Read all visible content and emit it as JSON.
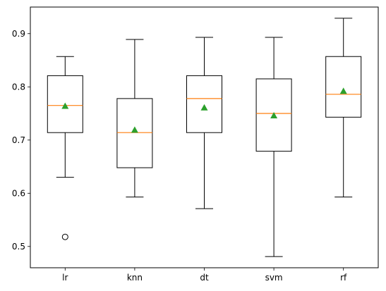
{
  "chart_data": {
    "type": "box",
    "title": "",
    "xlabel": "",
    "ylabel": "",
    "categories": [
      "lr",
      "knn",
      "dt",
      "svm",
      "rf"
    ],
    "ylim": [
      0.46,
      0.95
    ],
    "yticks": [
      0.5,
      0.6,
      0.7,
      0.8,
      0.9
    ],
    "ytick_labels": [
      "0.5",
      "0.6",
      "0.7",
      "0.8",
      "0.9"
    ],
    "grid": false,
    "boxes": [
      {
        "name": "lr",
        "whisker_low": 0.63,
        "q1": 0.714,
        "median": 0.765,
        "q3": 0.821,
        "whisker_high": 0.857,
        "mean": 0.764,
        "outliers": [
          0.518
        ]
      },
      {
        "name": "knn",
        "whisker_low": 0.593,
        "q1": 0.648,
        "median": 0.714,
        "q3": 0.778,
        "whisker_high": 0.889,
        "mean": 0.719,
        "outliers": []
      },
      {
        "name": "dt",
        "whisker_low": 0.571,
        "q1": 0.714,
        "median": 0.778,
        "q3": 0.821,
        "whisker_high": 0.893,
        "mean": 0.761,
        "outliers": []
      },
      {
        "name": "svm",
        "whisker_low": 0.481,
        "q1": 0.679,
        "median": 0.75,
        "q3": 0.815,
        "whisker_high": 0.893,
        "mean": 0.746,
        "outliers": []
      },
      {
        "name": "rf",
        "whisker_low": 0.593,
        "q1": 0.743,
        "median": 0.786,
        "q3": 0.857,
        "whisker_high": 0.929,
        "mean": 0.792,
        "outliers": []
      }
    ],
    "colors": {
      "box": "#000000",
      "median": "#ff7f0e",
      "mean": "#2ca02c"
    }
  }
}
